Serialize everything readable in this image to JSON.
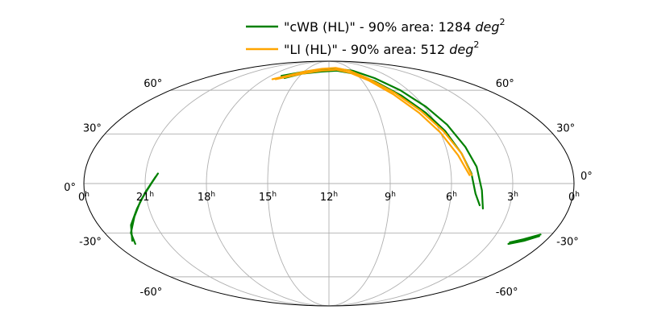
{
  "chart_data": {
    "type": "skymap",
    "projection": "mollweide",
    "grid": true,
    "legend_position": "top-center",
    "ra_ticks": [
      {
        "ra_h": 24,
        "base": "0",
        "sup": "h"
      },
      {
        "ra_h": 21,
        "base": "21",
        "sup": "h"
      },
      {
        "ra_h": 18,
        "base": "18",
        "sup": "h"
      },
      {
        "ra_h": 15,
        "base": "15",
        "sup": "h"
      },
      {
        "ra_h": 12,
        "base": "12",
        "sup": "h"
      },
      {
        "ra_h": 9,
        "base": "9",
        "sup": "h"
      },
      {
        "ra_h": 6,
        "base": "6",
        "sup": "h"
      },
      {
        "ra_h": 3,
        "base": "3",
        "sup": "h"
      },
      {
        "ra_h": 0,
        "base": "0",
        "sup": "h"
      }
    ],
    "dec_ticks": [
      {
        "dec": 60,
        "left": "60°",
        "right": "60°"
      },
      {
        "dec": 30,
        "left": "30°",
        "right": "30°"
      },
      {
        "dec": 0,
        "left": "0°",
        "right": "0°"
      },
      {
        "dec": -30,
        "left": "-30°",
        "right": "-30°"
      },
      {
        "dec": -60,
        "left": "-60°",
        "right": "-60°"
      }
    ],
    "series": [
      {
        "name": "\"cWB (HL)\" - 90% area: 1284 deg²",
        "label_main": "\"cWB (HL)\" - 90% area: 1284 ",
        "label_unit": "deg",
        "label_exp": "2",
        "color": "#008000",
        "segments": [
          [
            [
              16.9,
              72
            ],
            [
              15.0,
              76
            ],
            [
              13.0,
              78
            ],
            [
              11.0,
              79
            ],
            [
              9.0,
              77
            ],
            [
              7.6,
              70
            ],
            [
              6.6,
              60
            ],
            [
              5.9,
              48
            ],
            [
              5.4,
              36
            ],
            [
              5.0,
              22
            ],
            [
              4.7,
              10
            ],
            [
              4.5,
              -4
            ],
            [
              4.3,
              -15
            ]
          ],
          [
            [
              16.3,
              70
            ],
            [
              15.0,
              74
            ],
            [
              13.0,
              76
            ],
            [
              11.0,
              77
            ],
            [
              9.2,
              74
            ],
            [
              7.9,
              67
            ],
            [
              6.9,
              56
            ],
            [
              6.2,
              44
            ],
            [
              5.7,
              32
            ],
            [
              5.3,
              18
            ],
            [
              5.0,
              6
            ],
            [
              4.8,
              -6
            ],
            [
              4.5,
              -13
            ]
          ],
          [
            [
              20.4,
              6
            ],
            [
              20.7,
              0
            ],
            [
              21.3,
              -10
            ],
            [
              21.9,
              -20
            ],
            [
              22.6,
              -30
            ],
            [
              22.9,
              -37
            ]
          ],
          [
            [
              20.5,
              4
            ],
            [
              21.0,
              -5
            ],
            [
              21.6,
              -15
            ],
            [
              22.3,
              -25
            ],
            [
              22.9,
              -35
            ]
          ],
          [
            [
              1.9,
              -36
            ],
            [
              1.3,
              -34
            ],
            [
              0.6,
              -31
            ]
          ],
          [
            [
              1.9,
              -37
            ],
            [
              1.2,
              -35
            ],
            [
              0.6,
              -32
            ]
          ]
        ]
      },
      {
        "name": "\"LI (HL)\" - 90% area: 512 deg²",
        "label_main": "\"LI (HL)\" - 90% area: 512 ",
        "label_unit": "deg",
        "label_exp": "2",
        "color": "#FFA500",
        "segments": [
          [
            [
              17.3,
              69
            ],
            [
              15.0,
              76
            ],
            [
              13.0,
              79
            ],
            [
              11.0,
              80
            ],
            [
              9.4,
              77
            ],
            [
              8.2,
              69
            ],
            [
              7.2,
              58
            ],
            [
              6.4,
              45
            ],
            [
              5.8,
              32
            ],
            [
              5.3,
              18
            ],
            [
              5.0,
              5
            ]
          ],
          [
            [
              17.0,
              69
            ],
            [
              15.0,
              74
            ],
            [
              13.0,
              77
            ],
            [
              11.0,
              78
            ],
            [
              9.6,
              75
            ],
            [
              8.4,
              68
            ],
            [
              7.4,
              57
            ],
            [
              6.6,
              44
            ],
            [
              6.0,
              31
            ],
            [
              5.5,
              17
            ],
            [
              5.1,
              5
            ]
          ]
        ]
      }
    ]
  }
}
